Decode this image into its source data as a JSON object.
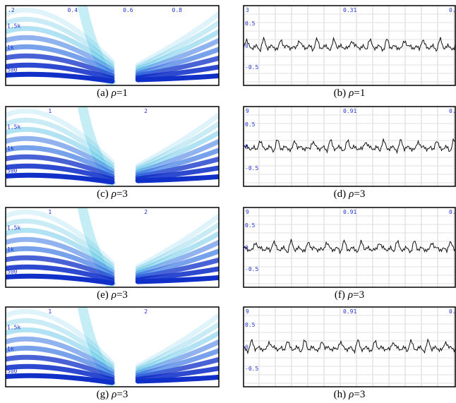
{
  "panels": [
    {
      "kind": "spectrogram",
      "x_labels": [
        ".2",
        "0.4",
        "0.6",
        "0.8"
      ],
      "y_labels": [
        "1.5k",
        "1k",
        "500"
      ],
      "caption": {
        "tag": "(a)",
        "symbol": "ρ",
        "rest": "=1"
      }
    },
    {
      "kind": "waveform",
      "top_labels": [
        "3",
        "0.31",
        "0."
      ],
      "y_labels": [
        "0.5",
        "0",
        "-0.5"
      ],
      "caption": {
        "tag": "(b)",
        "symbol": "ρ",
        "rest": "=1"
      }
    },
    {
      "kind": "spectrogram",
      "x_labels": [
        "1",
        "2"
      ],
      "y_labels": [
        "1.5k",
        "1k",
        "500"
      ],
      "caption": {
        "tag": "(c)",
        "symbol": "ρ",
        "rest": "=3"
      }
    },
    {
      "kind": "waveform",
      "top_labels": [
        "9",
        "0.91",
        "0."
      ],
      "y_labels": [
        "0.5",
        "0",
        "-0.5"
      ],
      "caption": {
        "tag": "(d)",
        "symbol": "ρ",
        "rest": "=3"
      }
    },
    {
      "kind": "spectrogram",
      "x_labels": [
        "1",
        "2"
      ],
      "y_labels": [
        "1.5k",
        "1k",
        "500"
      ],
      "caption": {
        "tag": "(e)",
        "symbol": "ρ",
        "rest": "=3"
      }
    },
    {
      "kind": "waveform",
      "top_labels": [
        "9",
        "0.91",
        "0."
      ],
      "y_labels": [
        "0.5",
        "0",
        "-0.5"
      ],
      "caption": {
        "tag": "(f)",
        "symbol": "ρ",
        "rest": "=3"
      }
    },
    {
      "kind": "spectrogram",
      "x_labels": [
        "1",
        "2"
      ],
      "y_labels": [
        "1.5k",
        "1k",
        "500"
      ],
      "caption": {
        "tag": "(g)",
        "symbol": "ρ",
        "rest": "=3"
      }
    },
    {
      "kind": "waveform",
      "top_labels": [
        "9",
        "0.91",
        "0."
      ],
      "y_labels": [
        "0.5",
        "0",
        "-0.5"
      ],
      "caption": {
        "tag": "(h)",
        "symbol": "ρ",
        "rest": "=3"
      }
    }
  ]
}
